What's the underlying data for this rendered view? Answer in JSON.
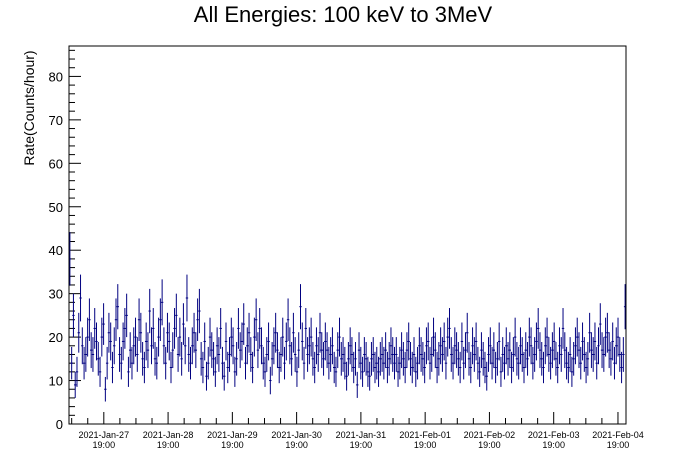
{
  "chart_data": {
    "type": "scatter",
    "title": "All Energies:  100 keV to 3MeV",
    "xlabel": "",
    "ylabel": "Rate(Counts/hour)",
    "ylim": [
      0,
      87
    ],
    "yticks": [
      0,
      10,
      20,
      30,
      40,
      50,
      60,
      70,
      80
    ],
    "x_axis": {
      "start": "2021-01-27T06:00",
      "end": "2021-02-04T22:00",
      "unit": "hour"
    },
    "x_ticks": [
      {
        "date": "2021-Jan-27",
        "time": "19:00"
      },
      {
        "date": "2021-Jan-28",
        "time": "19:00"
      },
      {
        "date": "2021-Jan-29",
        "time": "19:00"
      },
      {
        "date": "2021-Jan-30",
        "time": "19:00"
      },
      {
        "date": "2021-Jan-31",
        "time": "19:00"
      },
      {
        "date": "2021-Feb-01",
        "time": "19:00"
      },
      {
        "date": "2021-Feb-02",
        "time": "19:00"
      },
      {
        "date": "2021-Feb-03",
        "time": "19:00"
      },
      {
        "date": "2021-Feb-04",
        "time": "19:00"
      }
    ],
    "marker_color": "#000080",
    "grid": false,
    "legend": "none",
    "series": [
      {
        "error": "sqrt",
        "values": [
          38,
          14,
          25,
          9,
          12,
          21,
          29,
          18,
          14,
          16,
          20,
          24,
          17,
          16,
          22,
          19,
          15,
          12,
          20,
          23,
          8,
          14,
          21,
          19,
          13,
          18,
          24,
          27,
          16,
          14,
          19,
          22,
          25,
          12,
          17,
          14,
          18,
          20,
          16,
          24,
          21,
          15,
          13,
          19,
          17,
          26,
          18,
          22,
          15,
          14,
          20,
          24,
          28,
          18,
          14,
          21,
          19,
          13,
          17,
          22,
          25,
          16,
          20,
          15,
          23,
          18,
          29,
          16,
          14,
          18,
          21,
          17,
          24,
          26,
          15,
          13,
          19,
          11,
          14,
          20,
          17,
          15,
          12,
          18,
          16,
          22,
          14,
          11,
          19,
          13,
          16,
          20,
          18,
          12,
          15,
          22,
          17,
          19,
          23,
          14,
          18,
          21,
          16,
          13,
          20,
          24,
          17,
          22,
          18,
          14,
          12,
          16,
          19,
          10,
          15,
          18,
          21,
          17,
          13,
          16,
          20,
          14,
          19,
          24,
          18,
          15,
          21,
          16,
          12,
          17,
          27,
          19,
          14,
          22,
          16,
          18,
          20,
          15,
          13,
          18,
          16,
          21,
          17,
          15,
          19,
          17,
          14,
          16,
          18,
          13,
          12,
          17,
          20,
          15,
          16,
          14,
          11,
          15,
          18,
          16,
          13,
          15,
          9,
          17,
          14,
          12,
          16,
          15,
          12,
          11,
          15,
          16,
          13,
          14,
          12,
          15,
          16,
          14,
          17,
          13,
          15,
          18,
          16,
          14,
          16,
          12,
          14,
          17,
          15,
          13,
          17,
          19,
          15,
          13,
          16,
          12,
          14,
          18,
          16,
          15,
          13,
          18,
          19,
          14,
          16,
          20,
          17,
          13,
          15,
          18,
          16,
          19,
          14,
          20,
          22,
          16,
          14,
          18,
          17,
          15,
          13,
          19,
          14,
          17,
          21,
          15,
          13,
          18,
          16,
          19,
          14,
          12,
          17,
          15,
          13,
          11,
          16,
          18,
          14,
          17,
          13,
          15,
          19,
          12,
          16,
          14,
          18,
          15,
          17,
          13,
          16,
          20,
          15,
          14,
          18,
          16,
          13,
          17,
          15,
          20,
          18,
          14,
          16,
          19,
          22,
          17,
          15,
          13,
          18,
          20,
          16,
          14,
          17,
          19,
          15,
          13,
          18,
          16,
          22,
          17,
          14,
          13,
          16,
          12,
          15,
          18,
          20,
          17,
          14,
          19,
          16,
          13,
          15,
          21,
          17,
          16,
          19,
          14,
          18,
          23,
          17,
          16,
          20,
          21,
          17,
          15,
          19,
          14,
          18,
          20,
          16,
          13,
          16,
          27
        ]
      }
    ]
  }
}
